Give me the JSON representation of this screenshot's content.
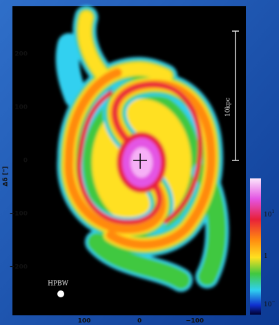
{
  "axes": {
    "y_label": "Δδ [\"]",
    "y_ticks": [
      "200",
      "100",
      "0",
      "−100",
      "−200"
    ],
    "x_ticks": [
      "100",
      "0",
      "−100"
    ]
  },
  "scale_bar": "10kpc",
  "beam_label": "HPBW",
  "colorbar": {
    "ticks": [
      {
        "base": "10",
        "exp": "1"
      },
      {
        "base": "1"
      },
      {
        "base": "10",
        "exp": "−"
      }
    ]
  }
}
